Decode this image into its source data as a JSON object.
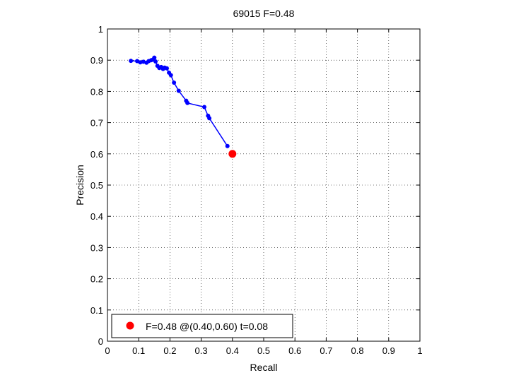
{
  "chart_data": {
    "type": "line",
    "title": "69015 F=0.48",
    "xlabel": "Recall",
    "ylabel": "Precision",
    "xlim": [
      0,
      1
    ],
    "ylim": [
      0,
      1
    ],
    "xticks": [
      "0",
      "0.1",
      "0.2",
      "0.3",
      "0.4",
      "0.5",
      "0.6",
      "0.7",
      "0.8",
      "0.9",
      "1"
    ],
    "yticks": [
      "0",
      "0.1",
      "0.2",
      "0.3",
      "0.4",
      "0.5",
      "0.6",
      "0.7",
      "0.8",
      "0.9",
      "1"
    ],
    "grid": true,
    "series": [
      {
        "color": "#0000ff",
        "points": [
          [
            0.075,
            0.898
          ],
          [
            0.095,
            0.897
          ],
          [
            0.105,
            0.893
          ],
          [
            0.115,
            0.895
          ],
          [
            0.125,
            0.892
          ],
          [
            0.132,
            0.897
          ],
          [
            0.14,
            0.9
          ],
          [
            0.146,
            0.902
          ],
          [
            0.15,
            0.908
          ],
          [
            0.154,
            0.896
          ],
          [
            0.16,
            0.882
          ],
          [
            0.166,
            0.875
          ],
          [
            0.172,
            0.878
          ],
          [
            0.178,
            0.872
          ],
          [
            0.183,
            0.876
          ],
          [
            0.19,
            0.874
          ],
          [
            0.197,
            0.86
          ],
          [
            0.203,
            0.852
          ],
          [
            0.213,
            0.828
          ],
          [
            0.228,
            0.802
          ],
          [
            0.252,
            0.77
          ],
          [
            0.256,
            0.763
          ],
          [
            0.31,
            0.75
          ],
          [
            0.322,
            0.722
          ],
          [
            0.326,
            0.714
          ],
          [
            0.384,
            0.625
          ]
        ]
      }
    ],
    "marker": {
      "recall": 0.4,
      "precision": 0.6,
      "color": "#ff0000"
    },
    "legend": {
      "location": "bottom-left",
      "label": "F=0.48 @(0.40,0.60) t=0.08"
    }
  }
}
